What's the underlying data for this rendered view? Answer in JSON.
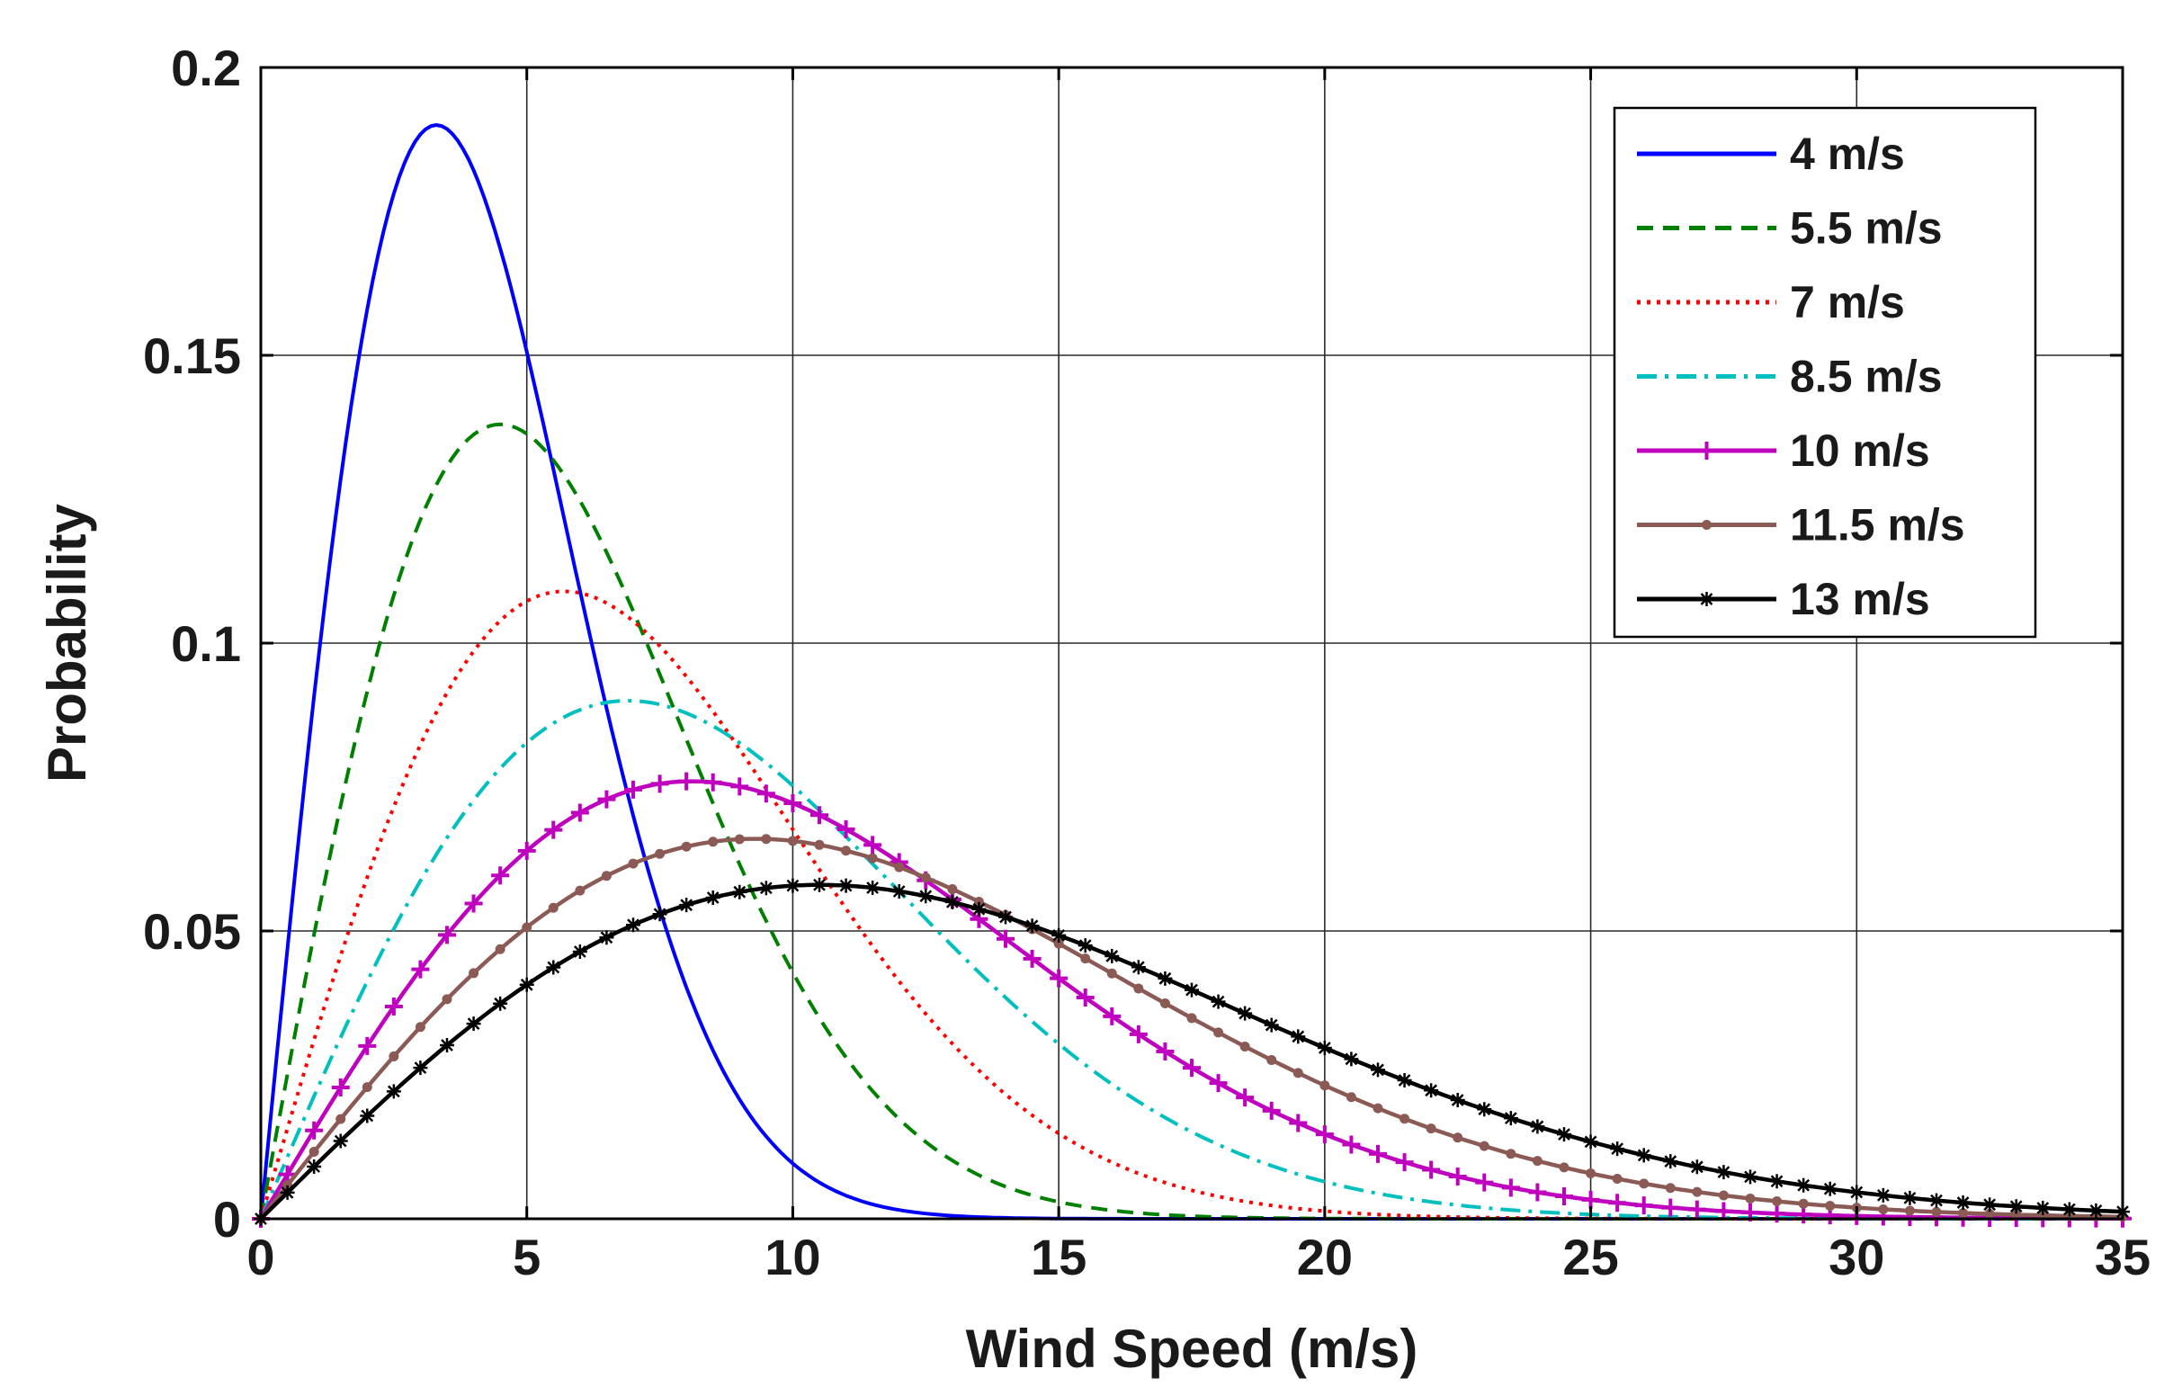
{
  "chart_data": {
    "type": "line",
    "title": "",
    "xlabel": "Wind Speed (m/s)",
    "ylabel": "Probability",
    "xlim": [
      0,
      35
    ],
    "ylim": [
      0,
      0.2
    ],
    "xticks": [
      0,
      5,
      10,
      15,
      20,
      25,
      30,
      35
    ],
    "xtick_labels": [
      "0",
      "5",
      "10",
      "15",
      "20",
      "25",
      "30",
      "35"
    ],
    "yticks": [
      0,
      0.05,
      0.1,
      0.15,
      0.2
    ],
    "ytick_labels": [
      "0",
      "0.05",
      "0.1",
      "0.15",
      "0.2"
    ],
    "grid": true,
    "legend_position": "top-right",
    "x_step": 0.5,
    "series": [
      {
        "name": "4 m/s",
        "mean": 4,
        "color": "#0000ff",
        "style": "solid",
        "marker": "none",
        "peak_x": 3.3,
        "peak_y": 0.19
      },
      {
        "name": "5.5 m/s",
        "mean": 5.5,
        "color": "#008000",
        "style": "dashed",
        "marker": "none",
        "peak_x": 4.5,
        "peak_y": 0.138
      },
      {
        "name": "7 m/s",
        "mean": 7,
        "color": "#ff0000",
        "style": "dotted",
        "marker": "none",
        "peak_x": 5.7,
        "peak_y": 0.109
      },
      {
        "name": "8.5 m/s",
        "mean": 8.5,
        "color": "#00bfbf",
        "style": "dashdot",
        "marker": "none",
        "peak_x": 6.9,
        "peak_y": 0.09
      },
      {
        "name": "10 m/s",
        "mean": 10,
        "color": "#bf00bf",
        "style": "solid",
        "marker": "plus",
        "peak_x": 8.1,
        "peak_y": 0.076
      },
      {
        "name": "11.5 m/s",
        "mean": 11.5,
        "color": "#8b5a55",
        "style": "solid",
        "marker": "dot",
        "peak_x": 9.3,
        "peak_y": 0.066
      },
      {
        "name": "13 m/s",
        "mean": 13,
        "color": "#000000",
        "style": "solid",
        "marker": "star",
        "peak_x": 10.5,
        "peak_y": 0.058
      }
    ]
  }
}
